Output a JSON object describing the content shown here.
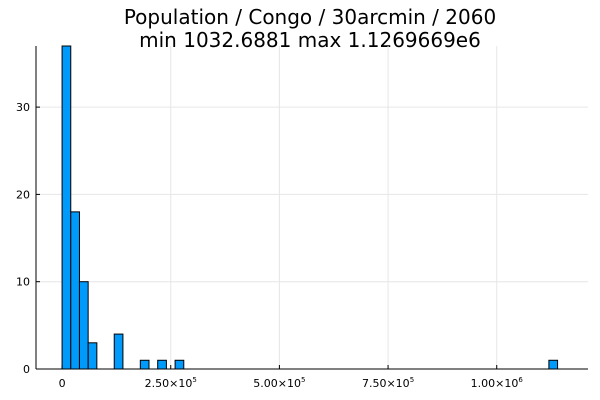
{
  "chart_data": {
    "type": "bar",
    "title_lines": [
      "Population / Congo / 30arcmin / 2060",
      "min 1032.6881  max 1.1269669e6"
    ],
    "xlabel": "",
    "ylabel": "",
    "xlim": [
      -60000,
      1210000
    ],
    "ylim": [
      0,
      37
    ],
    "grid": true,
    "legend": "none",
    "bar_color": "#009AFA",
    "bin_width": 20000,
    "x_ticks": [
      {
        "value": 0,
        "label": "0",
        "sup": ""
      },
      {
        "value": 250000,
        "label": "2.50×10",
        "sup": "5"
      },
      {
        "value": 500000,
        "label": "5.00×10",
        "sup": "5"
      },
      {
        "value": 750000,
        "label": "7.50×10",
        "sup": "5"
      },
      {
        "value": 1000000,
        "label": "1.00×10",
        "sup": "6"
      }
    ],
    "y_ticks": [
      {
        "value": 0,
        "label": "0"
      },
      {
        "value": 10,
        "label": "10"
      },
      {
        "value": 20,
        "label": "20"
      },
      {
        "value": 30,
        "label": "30"
      }
    ],
    "bins": [
      {
        "start": 0,
        "end": 20000,
        "count": 37
      },
      {
        "start": 20000,
        "end": 40000,
        "count": 18
      },
      {
        "start": 40000,
        "end": 60000,
        "count": 10
      },
      {
        "start": 60000,
        "end": 80000,
        "count": 3
      },
      {
        "start": 120000,
        "end": 140000,
        "count": 4
      },
      {
        "start": 180000,
        "end": 200000,
        "count": 1
      },
      {
        "start": 220000,
        "end": 240000,
        "count": 1
      },
      {
        "start": 260000,
        "end": 280000,
        "count": 1
      },
      {
        "start": 1120000,
        "end": 1140000,
        "count": 1
      }
    ]
  }
}
